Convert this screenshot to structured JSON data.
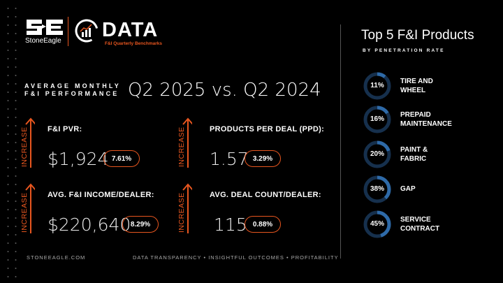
{
  "brand": {
    "logo_text": "SE",
    "name": "StoneEagle",
    "product": "DATA",
    "subtitle": "F&I Quarterly Benchmarks",
    "accent": "#e8561f"
  },
  "heading": {
    "line1": "AVERAGE MONTHLY",
    "line2": "F&I PERFORMANCE",
    "comparison": "Q2 2025 vs. Q2 2024"
  },
  "metrics": [
    {
      "label": "F&I PVR:",
      "value": "$1,924",
      "change": "7.61%",
      "trend": "INCREASE"
    },
    {
      "label": "PRODUCTS PER DEAL (PPD):",
      "value": "1.57",
      "change": "3.29%",
      "trend": "INCREASE"
    },
    {
      "label": "AVG. F&I INCOME/DEALER:",
      "value": "$220,640",
      "change": "8.29%",
      "trend": "INCREASE"
    },
    {
      "label": "AVG. DEAL COUNT/DEALER:",
      "value": "115",
      "change": "0.88%",
      "trend": "INCREASE"
    }
  ],
  "products": {
    "title": "Top 5 F&I Products",
    "subtitle": "BY PENETRATION RATE",
    "ring_color": "#2e6aa8",
    "track_color": "#16304d",
    "items": [
      {
        "pct": 11,
        "label": "11%",
        "line1": "TIRE AND",
        "line2": "WHEEL"
      },
      {
        "pct": 16,
        "label": "16%",
        "line1": "PREPAID",
        "line2": "MAINTENANCE"
      },
      {
        "pct": 20,
        "label": "20%",
        "line1": "PAINT &",
        "line2": "FABRIC"
      },
      {
        "pct": 38,
        "label": "38%",
        "line1": "GAP",
        "line2": ""
      },
      {
        "pct": 45,
        "label": "45%",
        "line1": "SERVICE",
        "line2": "CONTRACT"
      }
    ]
  },
  "footer": {
    "site": "STONEEAGLE.COM",
    "tagline": "DATA TRANSPARENCY • INSIGHTFUL OUTCOMES • PROFITABILITY"
  }
}
